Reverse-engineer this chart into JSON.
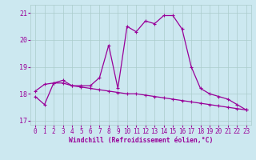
{
  "xlabel": "Windchill (Refroidissement éolien,°C)",
  "x_hours": [
    0,
    1,
    2,
    3,
    4,
    5,
    6,
    7,
    8,
    9,
    10,
    11,
    12,
    13,
    14,
    15,
    16,
    17,
    18,
    19,
    20,
    21,
    22,
    23
  ],
  "curve1": [
    17.9,
    17.6,
    18.4,
    18.5,
    18.3,
    18.3,
    18.3,
    18.6,
    19.8,
    18.2,
    20.5,
    20.3,
    20.7,
    20.6,
    20.9,
    20.9,
    20.4,
    19.0,
    18.2,
    18.0,
    17.9,
    17.8,
    17.6,
    17.4
  ],
  "curve2": [
    18.1,
    18.35,
    18.4,
    18.4,
    18.3,
    18.25,
    18.2,
    18.15,
    18.1,
    18.05,
    18.0,
    18.0,
    17.95,
    17.9,
    17.85,
    17.8,
    17.75,
    17.7,
    17.65,
    17.6,
    17.55,
    17.5,
    17.45,
    17.4
  ],
  "line_color": "#990099",
  "bg_color": "#cce8f0",
  "grid_color": "#aacccc",
  "ylim": [
    16.85,
    21.3
  ],
  "yticks": [
    17,
    18,
    19,
    20,
    21
  ],
  "xlim": [
    -0.5,
    23.5
  ],
  "tick_fontsize": 5.5,
  "xlabel_fontsize": 5.8,
  "marker_size": 3,
  "linewidth": 0.9
}
